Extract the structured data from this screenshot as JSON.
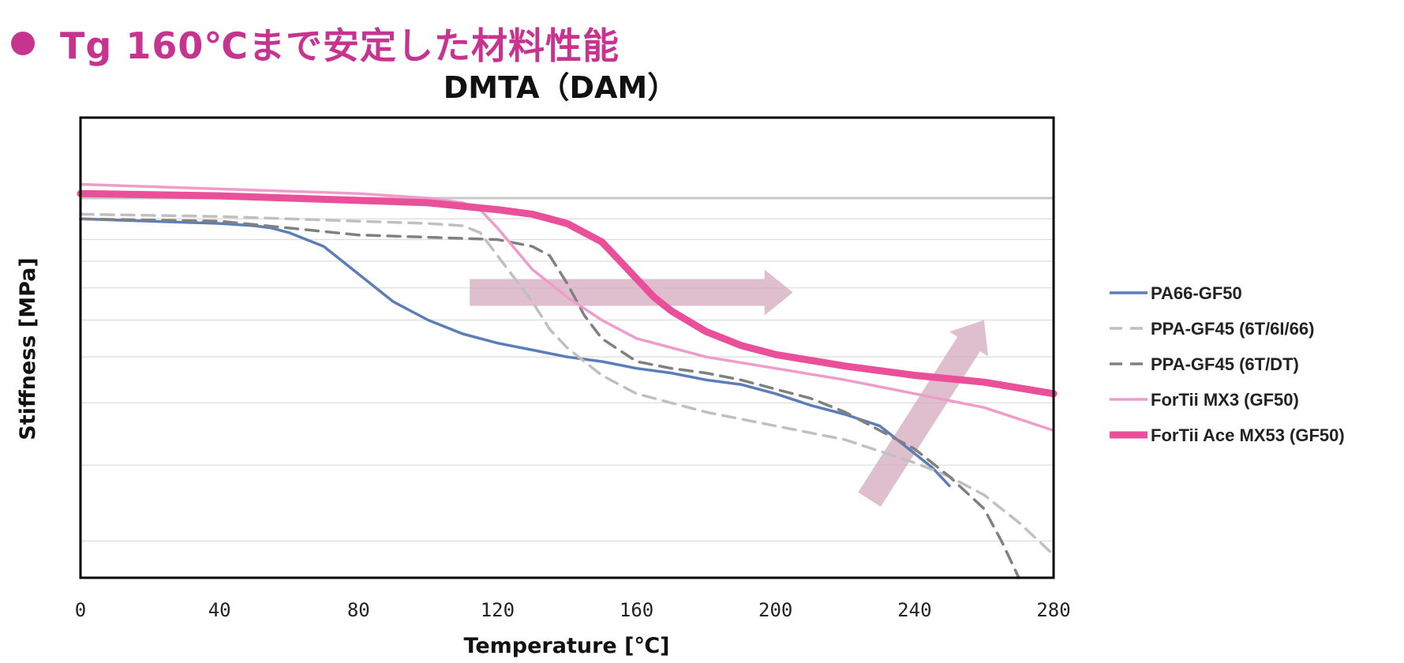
{
  "header": {
    "text": "Tg 160℃まで安定した材料性能",
    "accent_color": "#c7348f"
  },
  "chart_data": {
    "type": "line",
    "title": "DMTA（DAM）",
    "xlabel": "Temperature [℃]",
    "ylabel": "Stiffness [MPa]",
    "xlim": [
      0,
      280
    ],
    "ylim": [
      0,
      1
    ],
    "xticks": [
      "0",
      "40",
      "80",
      "120",
      "160",
      "200",
      "240",
      "280"
    ],
    "xtick_values": [
      0,
      40,
      80,
      120,
      160,
      200,
      240,
      280
    ],
    "y_tick_labels_shown": false,
    "y_scale": "log",
    "grid": "horizontal",
    "legend_position": "right",
    "series": [
      {
        "name": "PA66-GF50",
        "color": "#5b7db8",
        "style": "solid",
        "x": [
          0,
          20,
          40,
          50,
          55,
          60,
          70,
          80,
          90,
          100,
          110,
          120,
          130,
          140,
          150,
          160,
          170,
          180,
          190,
          200,
          210,
          220,
          230,
          240,
          245,
          250
        ],
        "y": [
          0.78,
          0.775,
          0.77,
          0.765,
          0.76,
          0.75,
          0.72,
          0.66,
          0.6,
          0.56,
          0.53,
          0.51,
          0.495,
          0.48,
          0.47,
          0.455,
          0.445,
          0.43,
          0.42,
          0.4,
          0.375,
          0.355,
          0.33,
          0.27,
          0.24,
          0.2
        ]
      },
      {
        "name": "PPA-GF45 (6T/6I/66)",
        "color": "#c0c0c0",
        "style": "dashed",
        "x": [
          0,
          40,
          80,
          100,
          110,
          115,
          120,
          125,
          130,
          135,
          140,
          150,
          160,
          180,
          200,
          220,
          240,
          250,
          260,
          270,
          280
        ],
        "y": [
          0.79,
          0.785,
          0.775,
          0.77,
          0.765,
          0.75,
          0.7,
          0.65,
          0.6,
          0.54,
          0.5,
          0.44,
          0.4,
          0.36,
          0.33,
          0.3,
          0.25,
          0.22,
          0.18,
          0.12,
          0.05
        ]
      },
      {
        "name": "PPA-GF45 (6T/DT)",
        "color": "#808080",
        "style": "dashed",
        "x": [
          0,
          40,
          60,
          80,
          100,
          120,
          130,
          135,
          140,
          145,
          150,
          160,
          170,
          180,
          190,
          200,
          210,
          220,
          230,
          240,
          250,
          260,
          265,
          270
        ],
        "y": [
          0.78,
          0.775,
          0.76,
          0.745,
          0.74,
          0.735,
          0.72,
          0.7,
          0.64,
          0.57,
          0.52,
          0.47,
          0.455,
          0.445,
          0.43,
          0.41,
          0.39,
          0.36,
          0.32,
          0.28,
          0.22,
          0.15,
          0.08,
          0.0
        ]
      },
      {
        "name": "ForTii MX3 (GF50)",
        "color": "#f09ccb",
        "style": "solid",
        "x": [
          0,
          40,
          80,
          100,
          110,
          115,
          120,
          130,
          140,
          150,
          160,
          170,
          180,
          200,
          220,
          240,
          260,
          280
        ],
        "y": [
          0.855,
          0.845,
          0.835,
          0.825,
          0.815,
          0.8,
          0.76,
          0.67,
          0.61,
          0.56,
          0.52,
          0.5,
          0.48,
          0.455,
          0.43,
          0.4,
          0.37,
          0.32
        ]
      },
      {
        "name": "ForTii Ace MX53 (GF50)",
        "color": "#ea4f99",
        "style": "solid-thick",
        "x": [
          0,
          40,
          80,
          100,
          120,
          130,
          140,
          150,
          155,
          160,
          165,
          170,
          180,
          190,
          200,
          220,
          240,
          260,
          280
        ],
        "y": [
          0.835,
          0.83,
          0.82,
          0.815,
          0.8,
          0.79,
          0.77,
          0.73,
          0.69,
          0.65,
          0.61,
          0.58,
          0.535,
          0.505,
          0.485,
          0.46,
          0.44,
          0.425,
          0.4
        ]
      }
    ],
    "annotations": [
      {
        "type": "arrow",
        "direction": "right",
        "color": "#d4a9bd",
        "from": [
          112,
          0.62
        ],
        "to": [
          205,
          0.62
        ]
      },
      {
        "type": "arrow",
        "direction": "up-right",
        "color": "#d4a9bd",
        "from": [
          227,
          0.17
        ],
        "to": [
          260,
          0.56
        ]
      }
    ]
  }
}
